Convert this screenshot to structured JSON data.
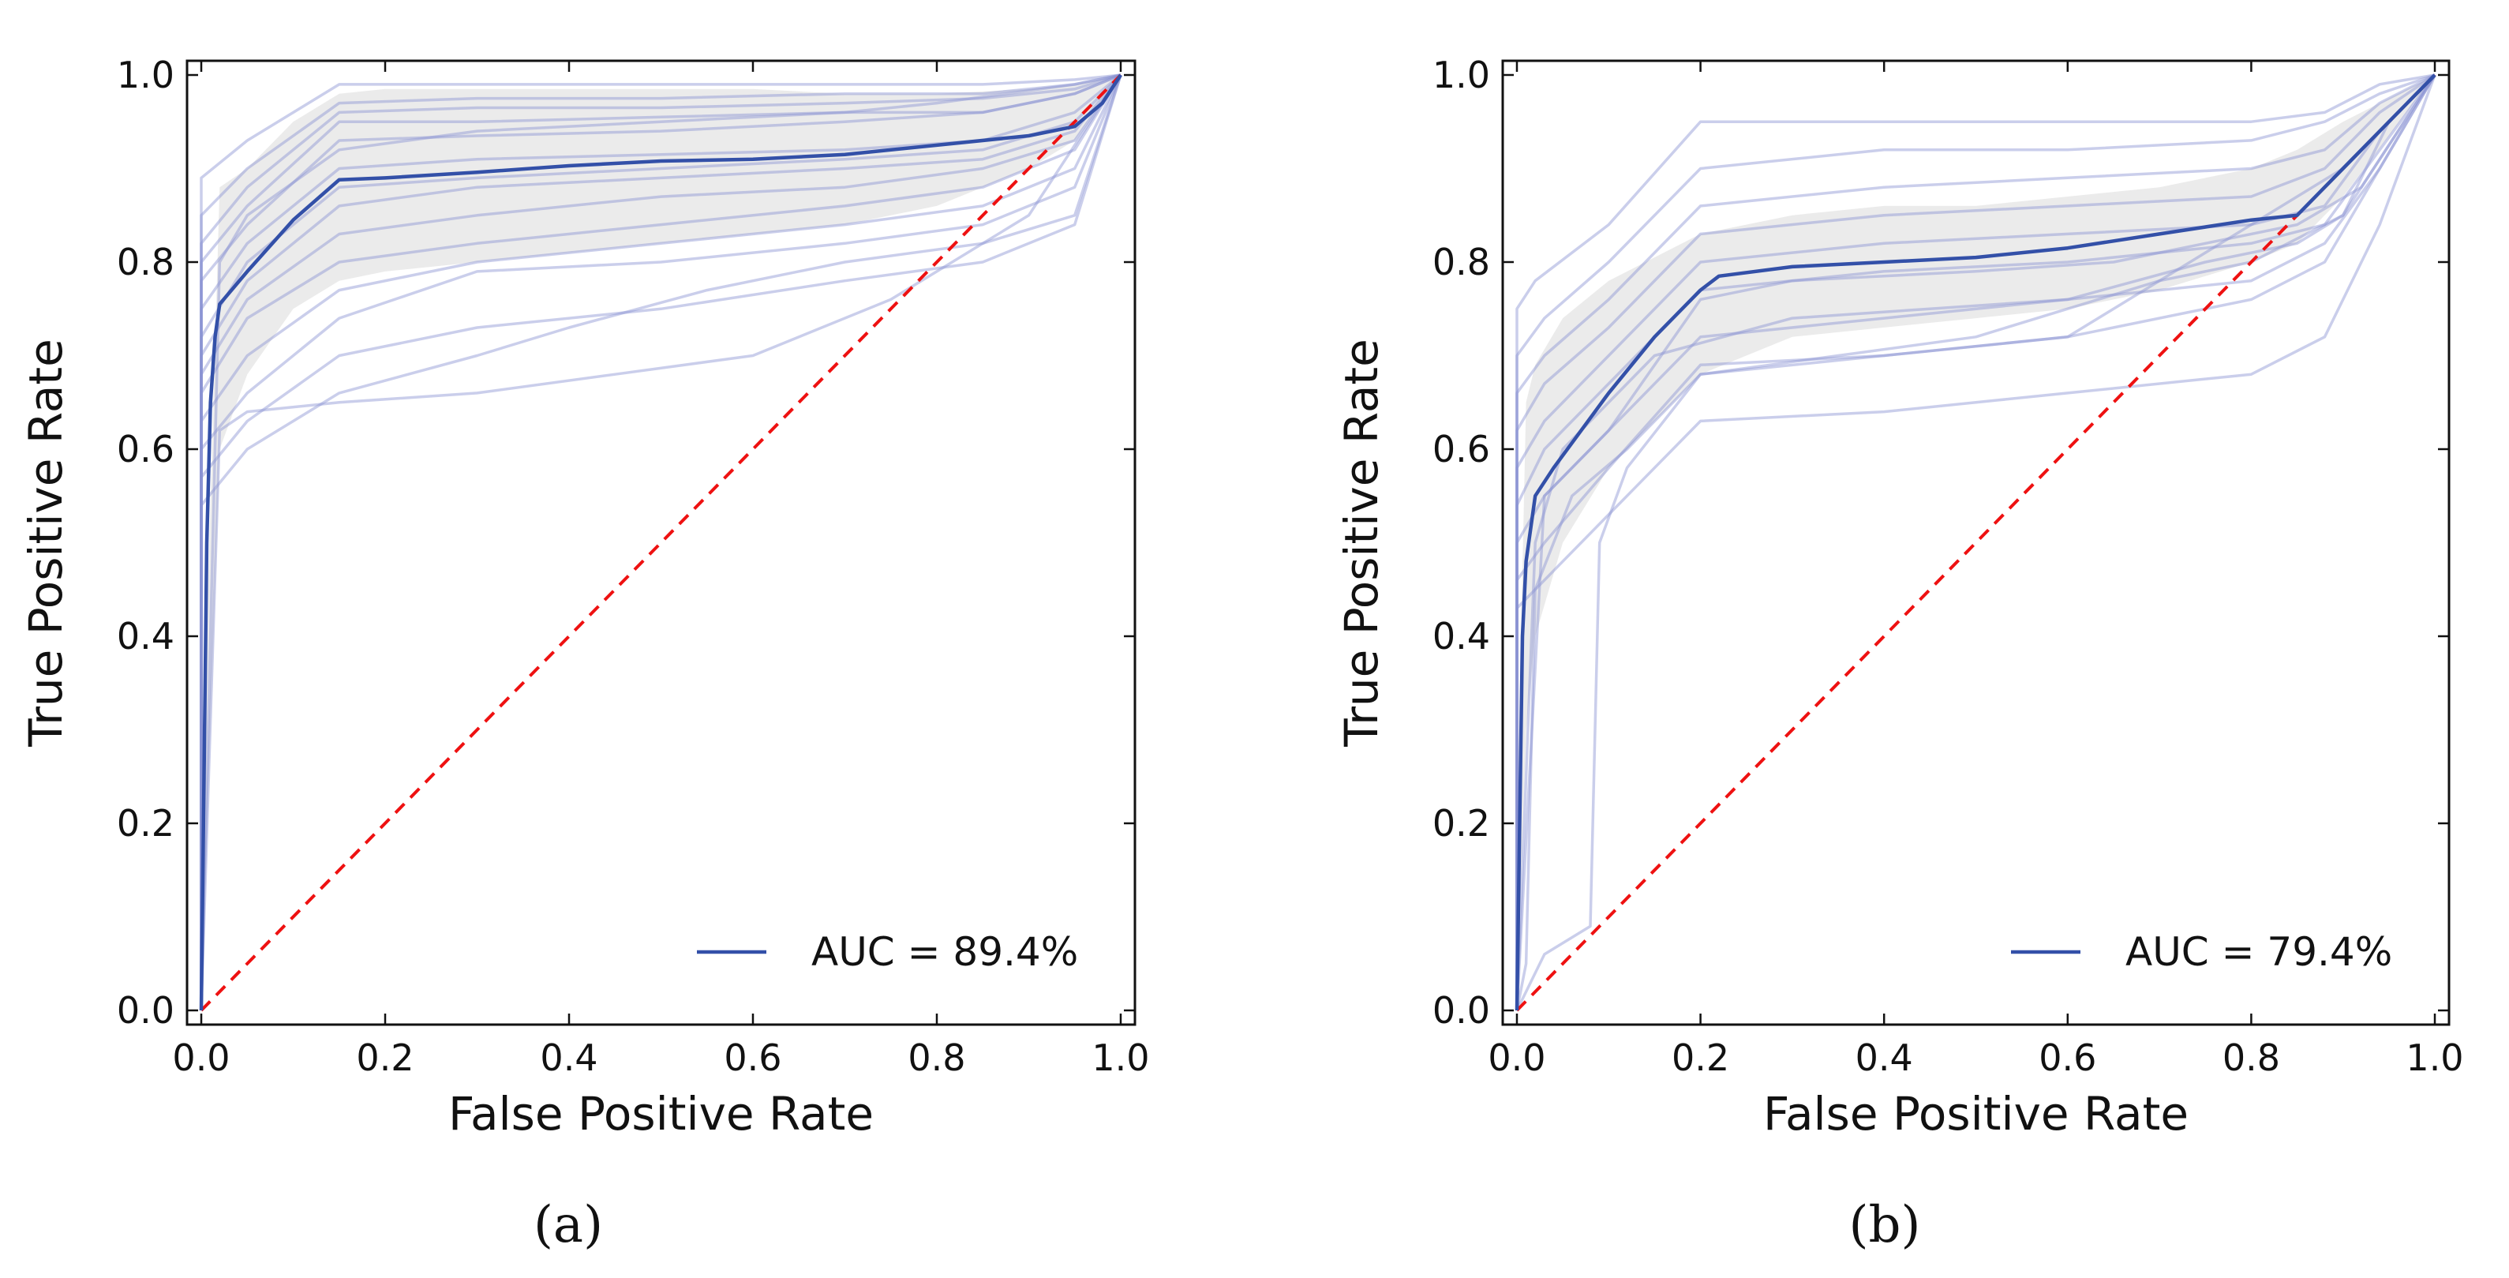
{
  "chart_data": [
    {
      "type": "line",
      "caption": "(a)",
      "xlabel": "False Positive Rate",
      "ylabel": "True Positive Rate",
      "xlim": [
        0,
        1
      ],
      "ylim": [
        0,
        1
      ],
      "xticks": [
        "0.0",
        "0.2",
        "0.4",
        "0.6",
        "0.8",
        "1.0"
      ],
      "yticks": [
        "0.0",
        "0.2",
        "0.4",
        "0.6",
        "0.8",
        "1.0"
      ],
      "grid": false,
      "legend_position": "lower right",
      "legend": [
        "AUC = 89.4%"
      ],
      "colors": {
        "mean": "#3350a8",
        "folds": "#8a93d2",
        "band": "#e6e6e6",
        "diagonal": "#ee1111"
      },
      "mean_curve": {
        "x": [
          0,
          0.003,
          0.006,
          0.01,
          0.015,
          0.02,
          0.05,
          0.1,
          0.15,
          0.2,
          0.3,
          0.4,
          0.5,
          0.6,
          0.7,
          0.8,
          0.9,
          0.95,
          0.98,
          1.0
        ],
        "y": [
          0,
          0.25,
          0.5,
          0.65,
          0.72,
          0.755,
          0.79,
          0.845,
          0.888,
          0.89,
          0.896,
          0.903,
          0.908,
          0.91,
          0.915,
          0.925,
          0.935,
          0.945,
          0.97,
          1.0
        ]
      },
      "band": {
        "x": [
          0,
          0.02,
          0.05,
          0.1,
          0.15,
          0.2,
          0.3,
          0.4,
          0.5,
          0.6,
          0.7,
          0.8,
          0.9,
          0.95,
          1.0
        ],
        "upper": [
          0.2,
          0.88,
          0.9,
          0.95,
          0.98,
          0.985,
          0.985,
          0.985,
          0.985,
          0.985,
          0.98,
          0.98,
          0.985,
          0.99,
          1.0
        ],
        "lower": [
          0,
          0.6,
          0.68,
          0.75,
          0.78,
          0.79,
          0.8,
          0.81,
          0.82,
          0.83,
          0.84,
          0.86,
          0.9,
          0.93,
          1.0
        ]
      },
      "fold_curves": [
        {
          "x": [
            0,
            0,
            0.05,
            0.15,
            0.3,
            0.5,
            0.7,
            0.85,
            0.95,
            1.0
          ],
          "y": [
            0,
            0.89,
            0.93,
            0.99,
            0.99,
            0.99,
            0.99,
            0.99,
            0.995,
            1.0
          ]
        },
        {
          "x": [
            0,
            0,
            0.05,
            0.15,
            0.3,
            0.5,
            0.7,
            0.85,
            0.95,
            1.0
          ],
          "y": [
            0,
            0.85,
            0.9,
            0.97,
            0.975,
            0.975,
            0.98,
            0.98,
            0.99,
            1.0
          ]
        },
        {
          "x": [
            0,
            0,
            0.05,
            0.15,
            0.3,
            0.5,
            0.7,
            0.85,
            0.95,
            1.0
          ],
          "y": [
            0,
            0.82,
            0.88,
            0.96,
            0.965,
            0.965,
            0.97,
            0.975,
            0.985,
            1.0
          ]
        },
        {
          "x": [
            0,
            0,
            0.05,
            0.15,
            0.3,
            0.5,
            0.7,
            0.85,
            0.95,
            1.0
          ],
          "y": [
            0,
            0.8,
            0.86,
            0.95,
            0.95,
            0.955,
            0.96,
            0.96,
            0.98,
            1.0
          ]
        },
        {
          "x": [
            0,
            0,
            0.05,
            0.15,
            0.3,
            0.5,
            0.7,
            0.85,
            0.95,
            1.0
          ],
          "y": [
            0,
            0.78,
            0.84,
            0.93,
            0.935,
            0.94,
            0.95,
            0.96,
            0.98,
            1.0
          ]
        },
        {
          "x": [
            0,
            0,
            0.05,
            0.15,
            0.3,
            0.5,
            0.7,
            0.85,
            0.95,
            1.0
          ],
          "y": [
            0,
            0.75,
            0.82,
            0.9,
            0.91,
            0.915,
            0.92,
            0.93,
            0.96,
            1.0
          ]
        },
        {
          "x": [
            0,
            0,
            0.05,
            0.15,
            0.3,
            0.5,
            0.7,
            0.85,
            0.95,
            1.0
          ],
          "y": [
            0,
            0.72,
            0.8,
            0.88,
            0.89,
            0.9,
            0.91,
            0.92,
            0.95,
            1.0
          ]
        },
        {
          "x": [
            0,
            0,
            0.05,
            0.15,
            0.3,
            0.5,
            0.7,
            0.85,
            0.95,
            1.0
          ],
          "y": [
            0,
            0.7,
            0.78,
            0.86,
            0.88,
            0.89,
            0.9,
            0.91,
            0.94,
            1.0
          ]
        },
        {
          "x": [
            0,
            0,
            0.05,
            0.15,
            0.3,
            0.5,
            0.7,
            0.85,
            0.95,
            1.0
          ],
          "y": [
            0,
            0.68,
            0.76,
            0.83,
            0.85,
            0.87,
            0.88,
            0.9,
            0.93,
            1.0
          ]
        },
        {
          "x": [
            0,
            0,
            0.05,
            0.15,
            0.3,
            0.5,
            0.7,
            0.85,
            0.95,
            1.0
          ],
          "y": [
            0,
            0.66,
            0.74,
            0.8,
            0.82,
            0.84,
            0.86,
            0.88,
            0.92,
            1.0
          ]
        },
        {
          "x": [
            0,
            0,
            0.05,
            0.15,
            0.3,
            0.5,
            0.7,
            0.85,
            0.95,
            1.0
          ],
          "y": [
            0,
            0.63,
            0.7,
            0.77,
            0.8,
            0.82,
            0.84,
            0.86,
            0.9,
            1.0
          ]
        },
        {
          "x": [
            0,
            0,
            0.05,
            0.15,
            0.3,
            0.5,
            0.7,
            0.85,
            0.95,
            1.0
          ],
          "y": [
            0,
            0.6,
            0.66,
            0.74,
            0.79,
            0.8,
            0.82,
            0.84,
            0.88,
            1.0
          ]
        },
        {
          "x": [
            0,
            0,
            0.05,
            0.15,
            0.3,
            0.5,
            0.7,
            0.85,
            0.95,
            1.0
          ],
          "y": [
            0,
            0.57,
            0.63,
            0.7,
            0.73,
            0.75,
            0.78,
            0.8,
            0.84,
            1.0
          ]
        },
        {
          "x": [
            0,
            0,
            0.05,
            0.15,
            0.3,
            0.4,
            0.55,
            0.7,
            0.85,
            0.95,
            1.0
          ],
          "y": [
            0,
            0.54,
            0.6,
            0.66,
            0.7,
            0.73,
            0.77,
            0.8,
            0.82,
            0.85,
            1.0
          ]
        },
        {
          "x": [
            0,
            0.02,
            0.05,
            0.15,
            0.3,
            0.45,
            0.6,
            0.75,
            0.9,
            1.0
          ],
          "y": [
            0,
            0.62,
            0.64,
            0.65,
            0.66,
            0.68,
            0.7,
            0.76,
            0.85,
            1.0
          ]
        },
        {
          "x": [
            0,
            0.02,
            0.05,
            0.15,
            0.3,
            0.5,
            0.7,
            0.8,
            0.95,
            1.0
          ],
          "y": [
            0,
            0.8,
            0.85,
            0.92,
            0.94,
            0.95,
            0.96,
            0.97,
            0.99,
            1.0
          ]
        }
      ]
    },
    {
      "type": "line",
      "caption": "(b)",
      "xlabel": "False Positive Rate",
      "ylabel": "True Positive Rate",
      "xlim": [
        0,
        1
      ],
      "ylim": [
        0,
        1
      ],
      "xticks": [
        "0.0",
        "0.2",
        "0.4",
        "0.6",
        "0.8",
        "1.0"
      ],
      "yticks": [
        "0.0",
        "0.2",
        "0.4",
        "0.6",
        "0.8",
        "1.0"
      ],
      "grid": false,
      "legend_position": "lower right",
      "legend": [
        "AUC = 79.4%"
      ],
      "colors": {
        "mean": "#3350a8",
        "folds": "#8a93d2",
        "band": "#e6e6e6",
        "diagonal": "#ee1111"
      },
      "mean_curve": {
        "x": [
          0,
          0.003,
          0.006,
          0.01,
          0.02,
          0.04,
          0.07,
          0.1,
          0.15,
          0.2,
          0.22,
          0.3,
          0.4,
          0.5,
          0.6,
          0.7,
          0.8,
          0.85,
          0.9,
          0.95,
          1.0
        ],
        "y": [
          0,
          0.2,
          0.4,
          0.48,
          0.55,
          0.58,
          0.62,
          0.66,
          0.72,
          0.77,
          0.785,
          0.795,
          0.8,
          0.805,
          0.815,
          0.83,
          0.845,
          0.85,
          0.9,
          0.95,
          1.0
        ]
      },
      "band": {
        "x": [
          0,
          0.01,
          0.02,
          0.05,
          0.1,
          0.2,
          0.3,
          0.4,
          0.5,
          0.6,
          0.7,
          0.8,
          0.85,
          0.9,
          1.0
        ],
        "upper": [
          0.2,
          0.65,
          0.69,
          0.74,
          0.78,
          0.83,
          0.85,
          0.86,
          0.86,
          0.87,
          0.88,
          0.9,
          0.92,
          0.95,
          1.0
        ],
        "lower": [
          0,
          0.3,
          0.4,
          0.5,
          0.58,
          0.68,
          0.72,
          0.73,
          0.74,
          0.75,
          0.77,
          0.8,
          0.82,
          0.87,
          1.0
        ]
      },
      "fold_curves": [
        {
          "x": [
            0,
            0,
            0.02,
            0.1,
            0.2,
            0.4,
            0.6,
            0.8,
            0.88,
            0.94,
            1.0
          ],
          "y": [
            0,
            0.75,
            0.78,
            0.84,
            0.95,
            0.95,
            0.95,
            0.95,
            0.96,
            0.99,
            1.0
          ]
        },
        {
          "x": [
            0,
            0,
            0.03,
            0.1,
            0.2,
            0.4,
            0.6,
            0.8,
            0.88,
            0.94,
            1.0
          ],
          "y": [
            0,
            0.7,
            0.74,
            0.8,
            0.9,
            0.92,
            0.92,
            0.93,
            0.95,
            0.98,
            1.0
          ]
        },
        {
          "x": [
            0,
            0,
            0.03,
            0.1,
            0.2,
            0.4,
            0.6,
            0.8,
            0.88,
            0.94,
            1.0
          ],
          "y": [
            0,
            0.66,
            0.7,
            0.76,
            0.86,
            0.88,
            0.89,
            0.9,
            0.92,
            0.97,
            1.0
          ]
        },
        {
          "x": [
            0,
            0,
            0.03,
            0.1,
            0.2,
            0.4,
            0.6,
            0.8,
            0.88,
            0.94,
            1.0
          ],
          "y": [
            0,
            0.62,
            0.67,
            0.73,
            0.83,
            0.85,
            0.86,
            0.87,
            0.9,
            0.96,
            1.0
          ]
        },
        {
          "x": [
            0,
            0,
            0.03,
            0.1,
            0.2,
            0.4,
            0.6,
            0.8,
            0.88,
            0.94,
            1.0
          ],
          "y": [
            0,
            0.58,
            0.63,
            0.7,
            0.8,
            0.82,
            0.83,
            0.84,
            0.86,
            0.94,
            1.0
          ]
        },
        {
          "x": [
            0,
            0,
            0.03,
            0.1,
            0.2,
            0.4,
            0.6,
            0.8,
            0.88,
            0.94,
            1.0
          ],
          "y": [
            0,
            0.54,
            0.6,
            0.67,
            0.77,
            0.79,
            0.8,
            0.82,
            0.84,
            0.92,
            1.0
          ]
        },
        {
          "x": [
            0,
            0,
            0.03,
            0.1,
            0.2,
            0.4,
            0.6,
            0.8,
            0.88,
            0.94,
            1.0
          ],
          "y": [
            0,
            0.5,
            0.55,
            0.62,
            0.72,
            0.74,
            0.76,
            0.78,
            0.82,
            0.9,
            1.0
          ]
        },
        {
          "x": [
            0,
            0,
            0.03,
            0.1,
            0.2,
            0.4,
            0.6,
            0.8,
            0.88,
            0.94,
            1.0
          ],
          "y": [
            0,
            0.46,
            0.5,
            0.58,
            0.69,
            0.7,
            0.72,
            0.76,
            0.8,
            0.9,
            1.0
          ]
        },
        {
          "x": [
            0,
            0,
            0.05,
            0.12,
            0.2,
            0.4,
            0.6,
            0.8,
            0.88,
            0.94,
            1.0
          ],
          "y": [
            0,
            0.43,
            0.48,
            0.55,
            0.63,
            0.64,
            0.66,
            0.68,
            0.72,
            0.84,
            1.0
          ]
        },
        {
          "x": [
            0,
            0.01,
            0.02,
            0.06,
            0.12,
            0.2,
            0.35,
            0.5,
            0.6,
            0.7,
            0.8,
            0.9,
            1.0
          ],
          "y": [
            0,
            0.05,
            0.45,
            0.55,
            0.6,
            0.68,
            0.7,
            0.72,
            0.75,
            0.78,
            0.8,
            0.85,
            1.0
          ]
        },
        {
          "x": [
            0,
            0.02,
            0.03,
            0.08,
            0.09,
            0.12,
            0.2,
            0.4,
            0.6,
            0.7,
            0.8,
            0.9,
            1.0
          ],
          "y": [
            0,
            0.04,
            0.06,
            0.09,
            0.5,
            0.58,
            0.68,
            0.7,
            0.72,
            0.78,
            0.84,
            0.9,
            1.0
          ]
        },
        {
          "x": [
            0,
            0.02,
            0.05,
            0.15,
            0.3,
            0.45,
            0.6,
            0.75,
            0.85,
            0.9,
            0.95,
            1.0
          ],
          "y": [
            0,
            0.5,
            0.6,
            0.7,
            0.74,
            0.75,
            0.76,
            0.8,
            0.82,
            0.85,
            0.95,
            1.0
          ]
        },
        {
          "x": [
            0,
            0.03,
            0.1,
            0.2,
            0.3,
            0.5,
            0.65,
            0.75,
            0.85,
            0.92,
            1.0
          ],
          "y": [
            0,
            0.55,
            0.62,
            0.76,
            0.78,
            0.79,
            0.8,
            0.82,
            0.84,
            0.88,
            1.0
          ]
        }
      ]
    }
  ]
}
